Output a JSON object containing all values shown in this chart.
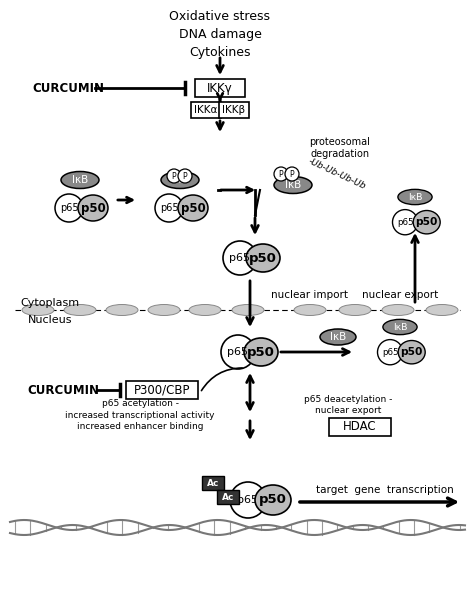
{
  "bg_color": "#ffffff",
  "gray_fill": "#888888",
  "light_gray": "#bbbbbb",
  "dark_fill": "#333333",
  "top_stimuli": "Oxidative stress\nDNA damage\nCytokines",
  "curcumin1": "CURCUMIN",
  "curcumin2": "CURCUMIN",
  "ikkgamma": "IKKγ",
  "ikkalpha": "IKKα",
  "ikkbeta": "IKKβ",
  "ixb_label": "IκB",
  "ub_label": "-Ub-Ub-Ub-Ub",
  "proteosomal": "proteosomal\ndegradation",
  "nuclear_import": "nuclear import",
  "nuclear_export": "nuclear export",
  "cytoplasm": "Cytoplasm",
  "nucleus": "Nucleus",
  "p300cbp": "P300/CBP",
  "hdac": "HDAC",
  "acetylation_text": "p65 acetylation -\nincreased transcriptional activity\nincreased enhancer binding",
  "deacetylation_text": "p65 deacetylation -\nnuclear export",
  "target_gene": "target  gene  transcription",
  "ac_label": "Ac"
}
